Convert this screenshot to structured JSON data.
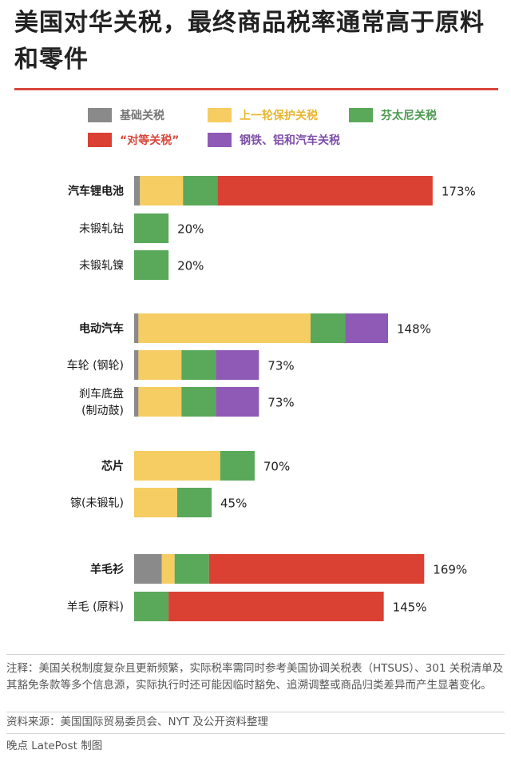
{
  "title": "美国对华关税，最终商品税率通常高于原料和零件",
  "legend": [
    {
      "key": "base",
      "label": "基础关税",
      "color": "#8a8a8a",
      "text_color": "#777777"
    },
    {
      "key": "protect",
      "label": "上一轮保护关税",
      "color": "#f5cd62",
      "text_color": "#e8b630"
    },
    {
      "key": "fentanyl",
      "label": "芬太尼关税",
      "color": "#5aa85a",
      "text_color": "#4e9a52"
    },
    {
      "key": "reciprocal",
      "label": "“对等关税”",
      "color": "#da4133",
      "text_color": "#d8473a"
    },
    {
      "key": "steel",
      "label": "钢铁、铝和汽车关税",
      "color": "#8e5ab5",
      "text_color": "#7d4fa8"
    }
  ],
  "chart_data": {
    "type": "bar",
    "orientation": "horizontal",
    "stacked": true,
    "unit": "%",
    "categories": [
      "汽车锂电池",
      "未锻轧钴",
      "未锻轧镍",
      "电动汽车",
      "车轮 (钢轮)",
      "刹车底盘 (制动鼓)",
      "芯片",
      "镓(未锻轧)",
      "羊毛衫",
      "羊毛 (原料)"
    ],
    "series": [
      {
        "name": "基础关税",
        "values": [
          3.4,
          0,
          0,
          2.5,
          2.5,
          2.5,
          0,
          0,
          16,
          0
        ]
      },
      {
        "name": "上一轮保护关税",
        "values": [
          25,
          0,
          0,
          100,
          25,
          25,
          50,
          25,
          7.5,
          0
        ]
      },
      {
        "name": "芬太尼关税",
        "values": [
          20,
          20,
          20,
          20,
          20,
          20,
          20,
          20,
          20,
          20
        ]
      },
      {
        "name": "“对等关税”",
        "values": [
          125,
          0,
          0,
          0,
          0,
          0,
          0,
          0,
          125,
          125
        ]
      },
      {
        "name": "钢铁、铝和汽车关税",
        "values": [
          0,
          0,
          0,
          25,
          25,
          25,
          0,
          0,
          0,
          0
        ]
      }
    ],
    "totals": [
      "173%",
      "20%",
      "20%",
      "148%",
      "73%",
      "73%",
      "70%",
      "45%",
      "169%",
      "145%"
    ],
    "groups": [
      {
        "rows": [
          0,
          1,
          2
        ],
        "bold": [
          0
        ]
      },
      {
        "rows": [
          3,
          4,
          5
        ],
        "bold": [
          3
        ]
      },
      {
        "rows": [
          6,
          7
        ],
        "bold": [
          6
        ]
      },
      {
        "rows": [
          8,
          9
        ],
        "bold": [
          8
        ]
      }
    ],
    "labels": [
      [
        "汽车锂电池"
      ],
      [
        "未锻轧钴"
      ],
      [
        "未锻轧镍"
      ],
      [
        "电动汽车"
      ],
      [
        "车轮 (钢轮)"
      ],
      [
        "刹车底盘",
        "(制动鼓)"
      ],
      [
        "芯片"
      ],
      [
        "镓(未锻轧)"
      ],
      [
        "羊毛衫"
      ],
      [
        "羊毛 (原料)"
      ]
    ],
    "xlim": [
      0,
      173
    ],
    "grid": false
  },
  "notes": "注释：美国关税制度复杂且更新频繁，实际税率需同时参考美国协调关税表（HTSUS）、301 关税清单及其豁免条款等多个信息源，实际执行时还可能因临时豁免、追溯调整或商品归类差异而产生显著变化。",
  "source": "资料来源：美国国际贸易委员会、NYT 及公开资料整理",
  "credit": "晚点 LatePost 制图"
}
